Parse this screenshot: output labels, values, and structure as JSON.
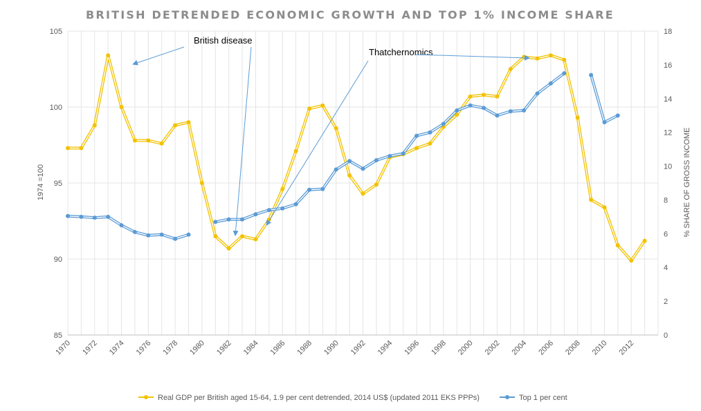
{
  "chart_data": {
    "type": "line",
    "title": "BRITISH DETRENDED ECONOMIC GROWTH AND TOP 1% INCOME SHARE",
    "y_left_label": "1974 =100",
    "y_right_label": "% SHARE OF GROSS INCOME",
    "y_left_lim": [
      85,
      105
    ],
    "y_left_ticks": [
      "85",
      "90",
      "95",
      "100",
      "105"
    ],
    "y_right_lim": [
      0,
      18
    ],
    "y_right_ticks": [
      "0",
      "2",
      "4",
      "6",
      "8",
      "10",
      "12",
      "14",
      "16",
      "18"
    ],
    "x_lim": [
      1970,
      2014
    ],
    "x_ticks": [
      "1970",
      "1972",
      "1974",
      "1976",
      "1978",
      "1980",
      "1982",
      "1984",
      "1986",
      "1988",
      "1990",
      "1992",
      "1994",
      "1996",
      "1998",
      "2000",
      "2002",
      "2004",
      "2006",
      "2008",
      "2010",
      "2012"
    ],
    "series": [
      {
        "name": "Real GDP per British aged 15-64, 1.9 per cent detrended,  2014 US$ (updated 2011 EKS PPPs)",
        "axis": "left",
        "color": "#f2c200",
        "points": [
          [
            1970,
            97.3
          ],
          [
            1971,
            97.3
          ],
          [
            1972,
            98.8
          ],
          [
            1973,
            103.4
          ],
          [
            1974,
            100.0
          ],
          [
            1975,
            97.8
          ],
          [
            1976,
            97.8
          ],
          [
            1977,
            97.6
          ],
          [
            1978,
            98.8
          ],
          [
            1979,
            99.0
          ],
          [
            1980,
            95.0
          ],
          [
            1981,
            91.5
          ],
          [
            1982,
            90.7
          ],
          [
            1983,
            91.5
          ],
          [
            1984,
            91.3
          ],
          [
            1985,
            92.6
          ],
          [
            1986,
            94.6
          ],
          [
            1987,
            97.1
          ],
          [
            1988,
            99.9
          ],
          [
            1989,
            100.1
          ],
          [
            1990,
            98.6
          ],
          [
            1991,
            95.5
          ],
          [
            1992,
            94.3
          ],
          [
            1993,
            94.9
          ],
          [
            1994,
            96.7
          ],
          [
            1995,
            96.9
          ],
          [
            1996,
            97.3
          ],
          [
            1997,
            97.6
          ],
          [
            1998,
            98.7
          ],
          [
            1999,
            99.5
          ],
          [
            2000,
            100.7
          ],
          [
            2001,
            100.8
          ],
          [
            2002,
            100.7
          ],
          [
            2003,
            102.5
          ],
          [
            2004,
            103.3
          ],
          [
            2005,
            103.2
          ],
          [
            2006,
            103.4
          ],
          [
            2007,
            103.1
          ],
          [
            2008,
            99.3
          ],
          [
            2009,
            93.9
          ],
          [
            2010,
            93.4
          ],
          [
            2011,
            90.9
          ],
          [
            2012,
            89.9
          ],
          [
            2013,
            91.2
          ]
        ]
      },
      {
        "name": "Top 1 per cent",
        "axis": "right",
        "color": "#5b9bd5",
        "segments": [
          [
            [
              1970,
              7.05
            ],
            [
              1971,
              7.0
            ],
            [
              1972,
              6.95
            ],
            [
              1973,
              7.0
            ],
            [
              1974,
              6.5
            ],
            [
              1975,
              6.1
            ],
            [
              1976,
              5.9
            ],
            [
              1977,
              5.95
            ],
            [
              1978,
              5.7
            ],
            [
              1979,
              5.95
            ]
          ],
          [
            [
              1981,
              6.7
            ],
            [
              1982,
              6.85
            ],
            [
              1983,
              6.85
            ],
            [
              1984,
              7.15
            ],
            [
              1985,
              7.4
            ],
            [
              1986,
              7.5
            ],
            [
              1987,
              7.75
            ],
            [
              1988,
              8.6
            ],
            [
              1989,
              8.65
            ],
            [
              1990,
              9.8
            ],
            [
              1991,
              10.3
            ],
            [
              1992,
              9.85
            ],
            [
              1993,
              10.35
            ],
            [
              1994,
              10.6
            ],
            [
              1995,
              10.75
            ],
            [
              1996,
              11.8
            ],
            [
              1997,
              12.0
            ],
            [
              1998,
              12.5
            ],
            [
              1999,
              13.3
            ],
            [
              2000,
              13.6
            ],
            [
              2001,
              13.45
            ],
            [
              2002,
              13.0
            ],
            [
              2003,
              13.25
            ],
            [
              2004,
              13.3
            ],
            [
              2005,
              14.3
            ],
            [
              2006,
              14.9
            ],
            [
              2007,
              15.5
            ]
          ],
          [
            [
              2009,
              15.4
            ],
            [
              2010,
              12.6
            ],
            [
              2011,
              13.0
            ]
          ]
        ]
      }
    ],
    "annotations": [
      {
        "label": "British disease"
      },
      {
        "label": "Thatchernomics"
      }
    ]
  }
}
